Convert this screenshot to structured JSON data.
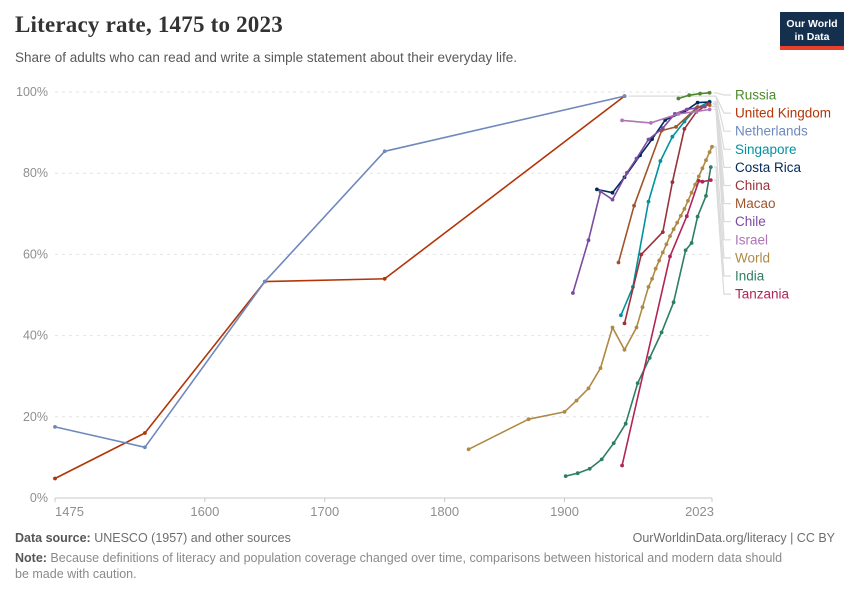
{
  "header": {
    "title": "Literacy rate, 1475 to 2023",
    "subtitle": "Share of adults who can read and write a simple statement about their everyday life."
  },
  "logo": {
    "line1": "Our World",
    "line2": "in Data",
    "bg_color": "#15304E",
    "accent_color": "#E8402A"
  },
  "chart_data": {
    "type": "line",
    "title": "Literacy rate, 1475 to 2023",
    "xlabel": "",
    "ylabel": "",
    "x_range": [
      1475,
      2023
    ],
    "y_range": [
      0,
      100
    ],
    "x_ticks": [
      1475,
      1600,
      1700,
      1800,
      1900,
      2023
    ],
    "x_tick_labels": [
      "1475",
      "1600",
      "1700",
      "1800",
      "1900",
      "2023"
    ],
    "y_ticks": [
      0,
      20,
      40,
      60,
      80,
      100
    ],
    "y_tick_labels": [
      "0%",
      "20%",
      "40%",
      "60%",
      "80%",
      "100%"
    ],
    "grid": "horizontal-dashed",
    "legend_position": "right",
    "series": [
      {
        "name": "Russia",
        "color": "#4C8A2C",
        "points": [
          [
            1995,
            98.4
          ],
          [
            2004,
            99.2
          ],
          [
            2013,
            99.6
          ],
          [
            2021,
            99.8
          ]
        ]
      },
      {
        "name": "United Kingdom",
        "color": "#B13507",
        "points": [
          [
            1475,
            4.8
          ],
          [
            1550,
            16
          ],
          [
            1650,
            53.3
          ],
          [
            1750,
            54
          ],
          [
            1950,
            99
          ]
        ]
      },
      {
        "name": "Netherlands",
        "color": "#6E89BD",
        "points": [
          [
            1475,
            17.5
          ],
          [
            1550,
            12.5
          ],
          [
            1650,
            53.3
          ],
          [
            1750,
            85.4
          ],
          [
            1950,
            99
          ]
        ]
      },
      {
        "name": "Singapore",
        "color": "#00939F",
        "points": [
          [
            1947,
            45
          ],
          [
            1957,
            52
          ],
          [
            1970,
            73
          ],
          [
            1980,
            83
          ],
          [
            1990,
            89
          ],
          [
            2000,
            92.7
          ],
          [
            2010,
            96
          ],
          [
            2021,
            97.6
          ]
        ]
      },
      {
        "name": "Costa Rica",
        "color": "#00295B",
        "points": [
          [
            1927,
            76
          ],
          [
            1940,
            75.2
          ],
          [
            1950,
            79
          ],
          [
            1963,
            84.4
          ],
          [
            1973,
            88.4
          ],
          [
            1984,
            93.1
          ],
          [
            2000,
            95.2
          ],
          [
            2011,
            97.4
          ],
          [
            2021,
            97.5
          ]
        ]
      },
      {
        "name": "China",
        "color": "#9A3339",
        "points": [
          [
            1950,
            43
          ],
          [
            1964,
            60
          ],
          [
            1982,
            65.5
          ],
          [
            1990,
            77.8
          ],
          [
            2000,
            90.9
          ],
          [
            2010,
            95.1
          ],
          [
            2020,
            97.1
          ]
        ]
      },
      {
        "name": "Macao",
        "color": "#A1542C",
        "points": [
          [
            1945,
            58
          ],
          [
            1958,
            72
          ],
          [
            1981,
            90.5
          ],
          [
            1993,
            91.4
          ],
          [
            2011,
            96.3
          ],
          [
            2021,
            96.8
          ]
        ]
      },
      {
        "name": "Chile",
        "color": "#7C4BA0",
        "points": [
          [
            1907,
            50.5
          ],
          [
            1920,
            63.5
          ],
          [
            1930,
            75.5
          ],
          [
            1940,
            73.5
          ],
          [
            1952,
            80.1
          ],
          [
            1960,
            83.6
          ],
          [
            1970,
            88.3
          ],
          [
            1982,
            91.1
          ],
          [
            1992,
            94.6
          ],
          [
            2002,
            95.7
          ],
          [
            2017,
            96.4
          ]
        ]
      },
      {
        "name": "Israel",
        "color": "#B073B6",
        "points": [
          [
            1948,
            93
          ],
          [
            1972,
            92.4
          ],
          [
            1995,
            94.6
          ],
          [
            2010,
            95.2
          ],
          [
            2021,
            95.7
          ]
        ]
      },
      {
        "name": "World",
        "color": "#AE8A45",
        "points": [
          [
            1820,
            12
          ],
          [
            1870,
            19.4
          ],
          [
            1900,
            21.2
          ],
          [
            1910,
            24
          ],
          [
            1920,
            27
          ],
          [
            1930,
            32
          ],
          [
            1940,
            42
          ],
          [
            1950,
            36.5
          ],
          [
            1960,
            42
          ],
          [
            1965,
            47
          ],
          [
            1970,
            52
          ],
          [
            1973,
            54
          ],
          [
            1976,
            56.5
          ],
          [
            1979,
            58.5
          ],
          [
            1982,
            60.5
          ],
          [
            1985,
            62.5
          ],
          [
            1988,
            64.5
          ],
          [
            1991,
            66.2
          ],
          [
            1994,
            67.8
          ],
          [
            1997,
            69.5
          ],
          [
            2000,
            71.2
          ],
          [
            2003,
            73.2
          ],
          [
            2006,
            75.2
          ],
          [
            2009,
            77.2
          ],
          [
            2012,
            79.2
          ],
          [
            2015,
            81.2
          ],
          [
            2018,
            83.2
          ],
          [
            2021,
            85.2
          ],
          [
            2023,
            86.5
          ]
        ]
      },
      {
        "name": "India",
        "color": "#2E7E64",
        "points": [
          [
            1901,
            5.4
          ],
          [
            1911,
            6.1
          ],
          [
            1921,
            7.2
          ],
          [
            1931,
            9.5
          ],
          [
            1941,
            13.5
          ],
          [
            1951,
            18.3
          ],
          [
            1961,
            28.3
          ],
          [
            1971,
            34.5
          ],
          [
            1981,
            40.8
          ],
          [
            1991,
            48.2
          ],
          [
            2001,
            61
          ],
          [
            2006,
            62.8
          ],
          [
            2011,
            69.3
          ],
          [
            2018,
            74.4
          ],
          [
            2022,
            81.5
          ]
        ]
      },
      {
        "name": "Tanzania",
        "color": "#B02458",
        "points": [
          [
            1948,
            8
          ],
          [
            1988,
            59.5
          ],
          [
            2002,
            69.4
          ],
          [
            2012,
            78.1
          ],
          [
            2015,
            77.9
          ],
          [
            2022,
            78.3
          ]
        ]
      }
    ]
  },
  "footer": {
    "source_label": "Data source:",
    "source_text": " UNESCO (1957) and other sources",
    "link_text": "OurWorldinData.org/literacy | CC BY",
    "note_label": "Note:",
    "note_text": " Because definitions of literacy and population coverage changed over time, comparisons between historical and modern data should be made with caution."
  }
}
